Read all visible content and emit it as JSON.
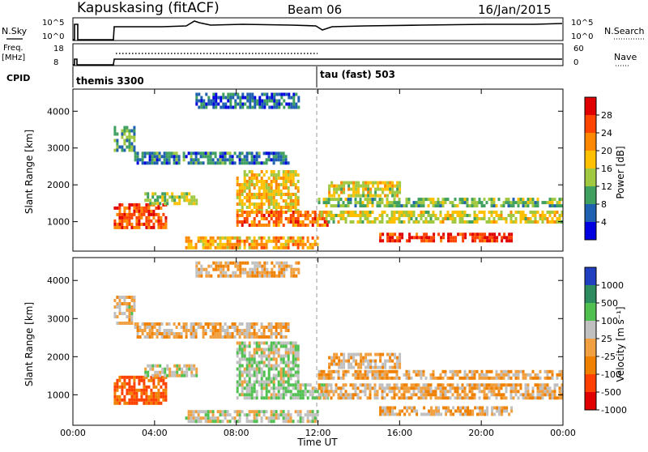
{
  "header": {
    "station": "Kapuskasing (fitACF)",
    "beam": "Beam 06",
    "date": "16/Jan/2015"
  },
  "nsky_panel": {
    "left_label": "N.Sky",
    "left_ticks": [
      "10^5",
      "10^0"
    ],
    "right_ticks": [
      "10^5",
      "10^0"
    ],
    "right_label": "N.Search"
  },
  "freq_panel": {
    "left_label_line1": "Freq.",
    "left_label_line2": "[MHz]",
    "left_ticks": [
      "18",
      "8"
    ],
    "right_ticks": [
      "60",
      "0"
    ],
    "right_label": "Nave"
  },
  "cpid_panel": {
    "label": "CPID",
    "segments": [
      "themis 3300",
      "tau (fast) 503"
    ]
  },
  "axes": {
    "xlabel": "Time UT",
    "x_ticks": [
      "00:00",
      "04:00",
      "08:00",
      "12:00",
      "16:00",
      "20:00",
      "00:00"
    ],
    "ylabel_power": "Slant Range [km]",
    "ylabel_velocity": "Slant Range [km]",
    "y_ticks": [
      "1000",
      "2000",
      "3000",
      "4000"
    ]
  },
  "colorbars": {
    "power": {
      "label": "Power [dB]",
      "ticks": [
        "28",
        "24",
        "20",
        "16",
        "12",
        "8",
        "4"
      ],
      "colors": [
        "#e00000",
        "#ff4400",
        "#ff8800",
        "#ffc000",
        "#a0c840",
        "#40a060",
        "#2060b0",
        "#0000e0"
      ]
    },
    "velocity": {
      "label": "Velocity [m s⁻¹]",
      "ticks": [
        "1000",
        "500",
        "100",
        "25",
        "-25",
        "-100",
        "-500",
        "-1000"
      ],
      "colors": [
        "#2040c0",
        "#2c8c60",
        "#50c050",
        "#c0c0c0",
        "#f0a040",
        "#f08000",
        "#ff4000",
        "#e00000"
      ]
    }
  },
  "chart_data": {
    "type": "heatmap",
    "x_range_hours": [
      0,
      24
    ],
    "y_range_km": [
      200,
      4600
    ],
    "vertical_marker_hour": 12,
    "echo_regions": [
      {
        "name": "",
        "t": [
          2.0,
          4.5
        ],
        "r": [
          800,
          1500
        ],
        "power": 26,
        "velocity": -120
      },
      {
        "name": "",
        "t": [
          3.5,
          6.0
        ],
        "r": [
          1500,
          1800
        ],
        "power": 14,
        "velocity": 60
      },
      {
        "name": "",
        "t": [
          3.0,
          10.5
        ],
        "r": [
          2550,
          2900
        ],
        "power": 8,
        "velocity": 0
      },
      {
        "name": "",
        "t": [
          8.0,
          11.0
        ],
        "r": [
          1300,
          2400
        ],
        "power": 18,
        "velocity": 80
      },
      {
        "name": "",
        "t": [
          8.0,
          12.5
        ],
        "r": [
          900,
          1300
        ],
        "power": 24,
        "velocity": 90
      },
      {
        "name": "",
        "t": [
          12.0,
          24.0
        ],
        "r": [
          950,
          1300
        ],
        "power": 16,
        "velocity": 0
      },
      {
        "name": "",
        "t": [
          12.0,
          24.0
        ],
        "r": [
          1400,
          1650
        ],
        "power": 12,
        "velocity": 0
      },
      {
        "name": "",
        "t": [
          12.5,
          16.0
        ],
        "r": [
          1700,
          2100
        ],
        "power": 16,
        "velocity": 10
      },
      {
        "name": "",
        "t": [
          15.0,
          21.5
        ],
        "r": [
          450,
          700
        ],
        "power": 28,
        "velocity": 0
      },
      {
        "name": "",
        "t": [
          5.5,
          12.0
        ],
        "r": [
          300,
          600
        ],
        "power": 20,
        "velocity": 60
      },
      {
        "name": "",
        "t": [
          2.0,
          3.0
        ],
        "r": [
          2900,
          3600
        ],
        "power": 10,
        "velocity": 40
      },
      {
        "name": "",
        "t": [
          6.0,
          11.0
        ],
        "r": [
          4100,
          4500
        ],
        "power": 6,
        "velocity": 0
      }
    ]
  }
}
